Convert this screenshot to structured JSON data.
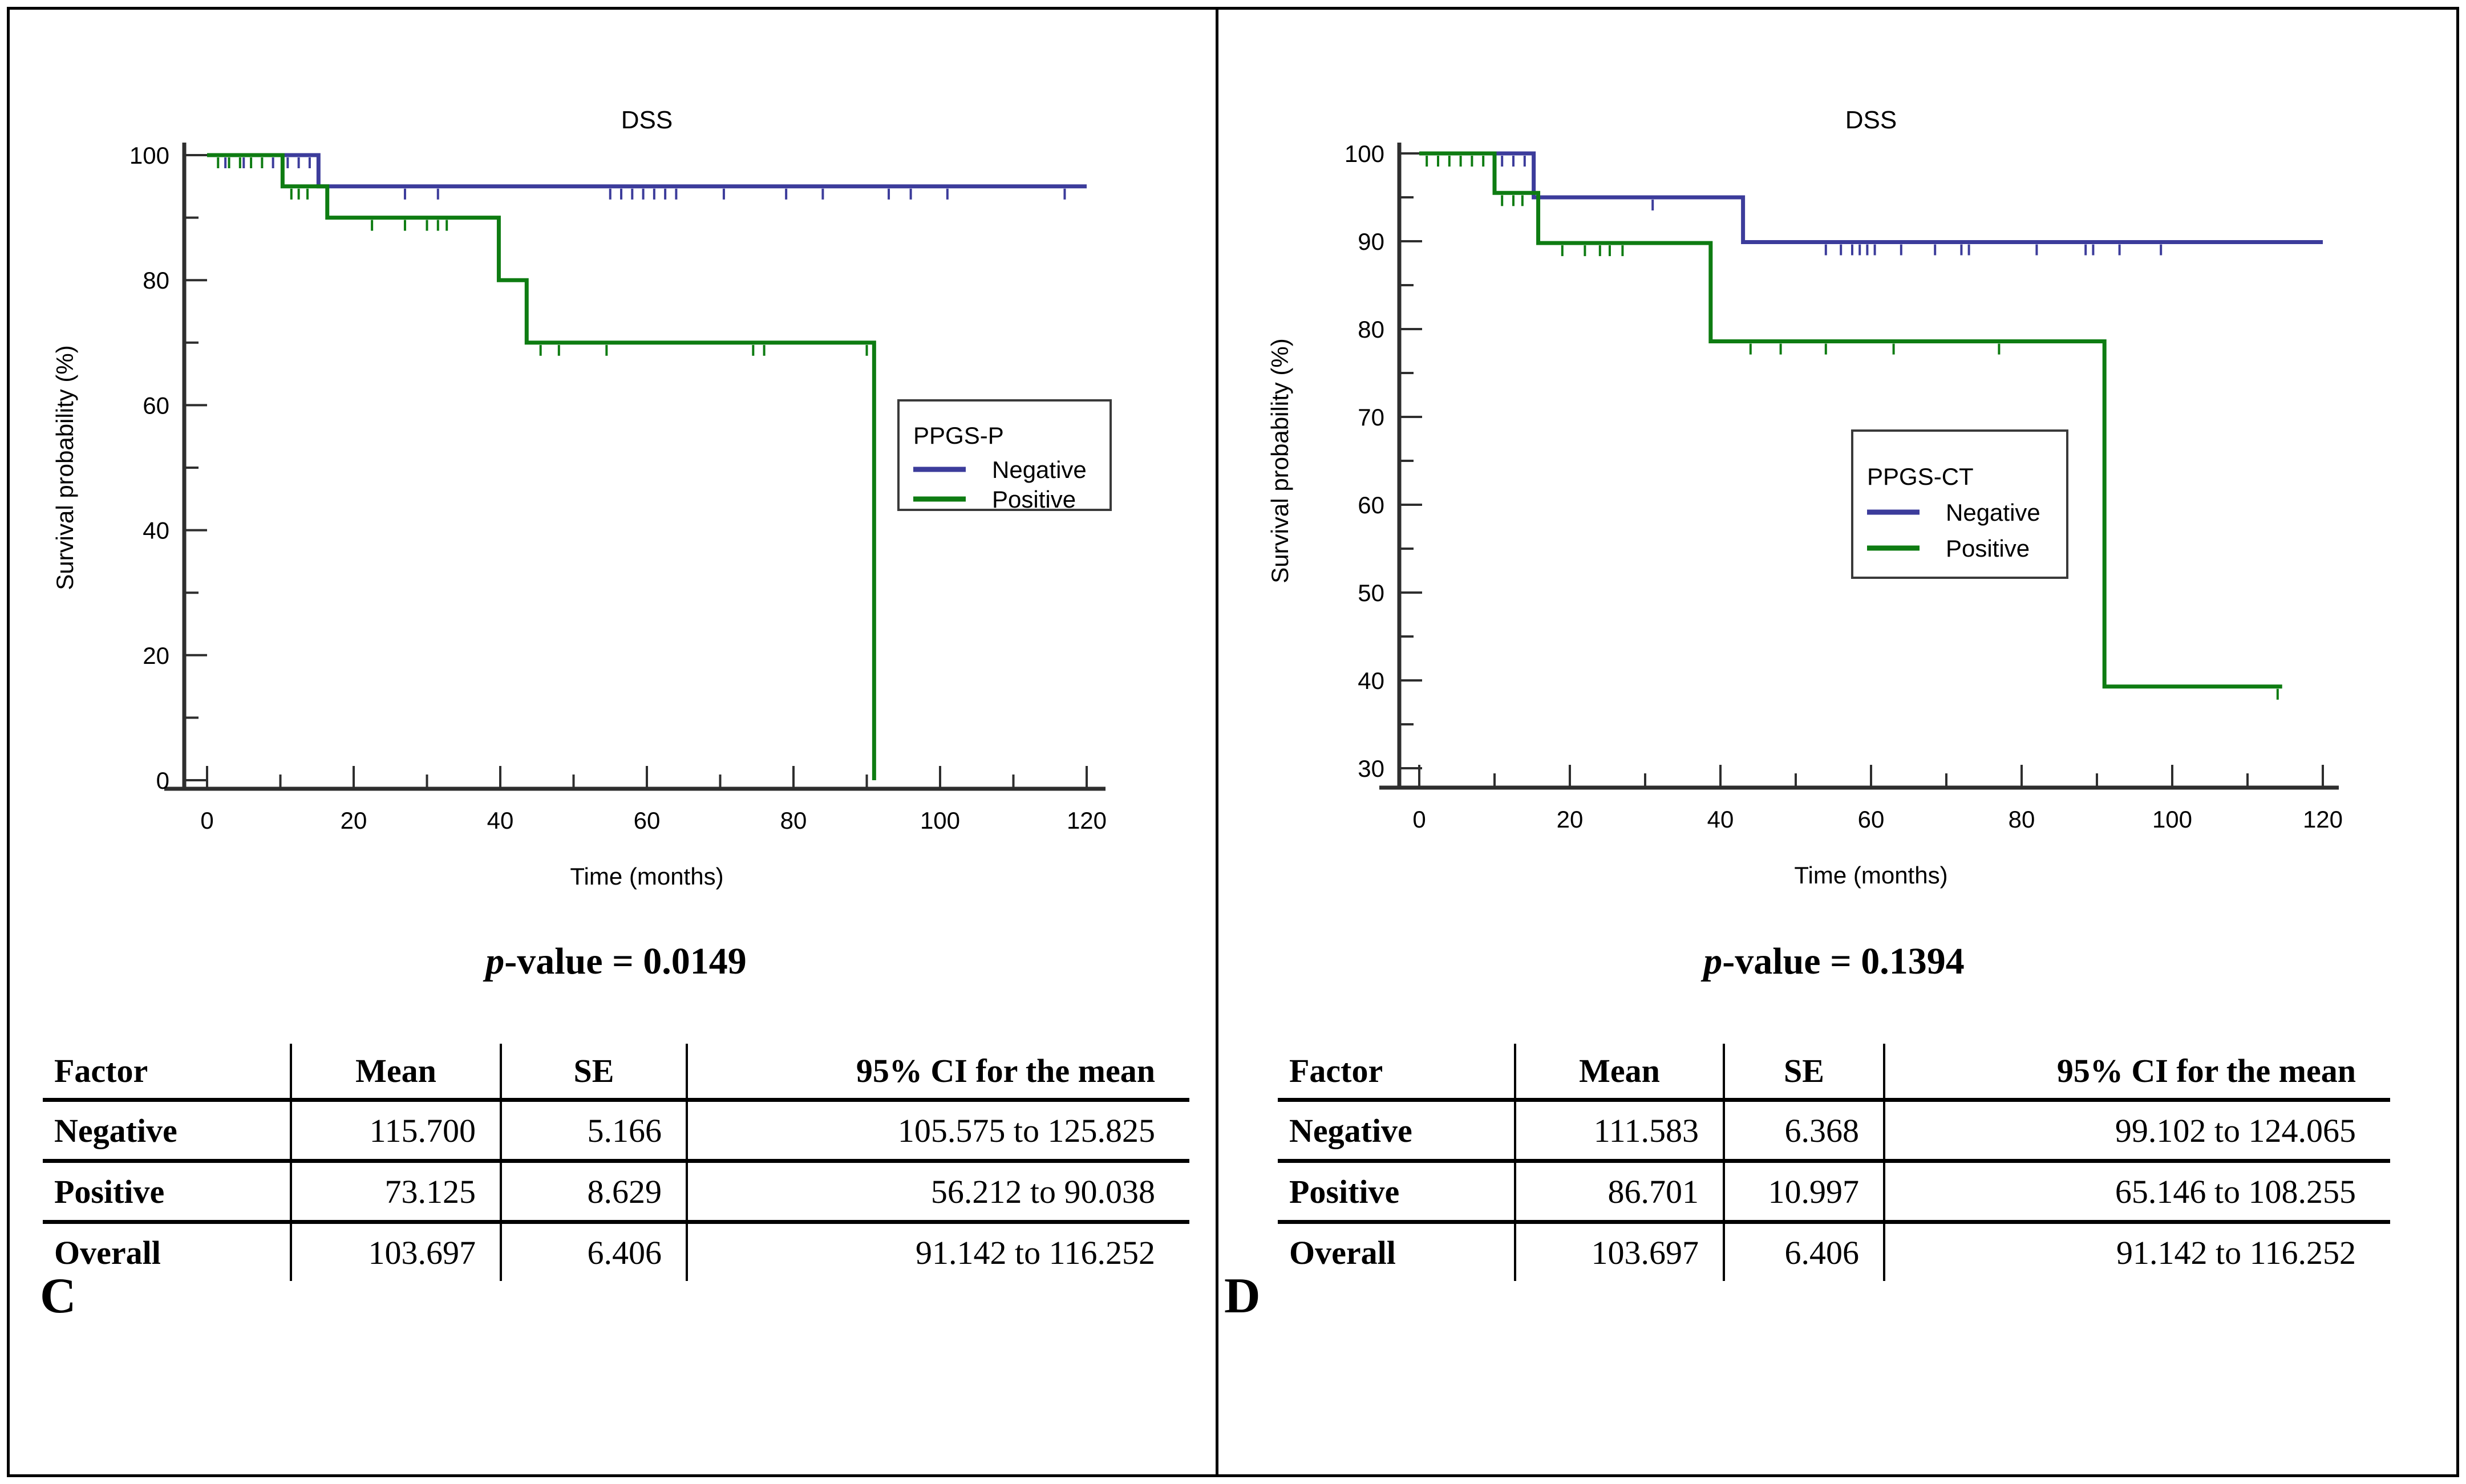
{
  "figure": {
    "background": "#ffffff",
    "border_color": "#000000",
    "axis_color": "#2e2e2e",
    "legend_border_color": "#3a3a3a"
  },
  "chart_data": [
    {
      "panel_label": "C",
      "type": "line",
      "subtype": "kaplan-meier-step",
      "title": "DSS",
      "xlabel": "Time (months)",
      "ylabel": "Survival probability (%)",
      "xlim": [
        0,
        120
      ],
      "ylim": [
        0,
        100
      ],
      "x_major_ticks": [
        0,
        20,
        40,
        60,
        80,
        100,
        120
      ],
      "x_minor_ticks": [
        10,
        30,
        50,
        70,
        90,
        110
      ],
      "y_major_ticks": [
        0,
        20,
        40,
        60,
        80,
        100
      ],
      "y_minor_ticks": [
        10,
        30,
        50,
        70,
        90
      ],
      "grid": false,
      "legend": {
        "title": "PPGS-P",
        "position": "right-middle"
      },
      "series": [
        {
          "name": "Negative",
          "color": "#3c3c9b",
          "steps": [
            [
              0,
              100
            ],
            [
              15.2,
              95
            ]
          ],
          "end": 120,
          "censors": [
            [
              2.5,
              100
            ],
            [
              5,
              100
            ],
            [
              9,
              100
            ],
            [
              11,
              100
            ],
            [
              12.5,
              100
            ],
            [
              14,
              100
            ],
            [
              27,
              95
            ],
            [
              31.5,
              95
            ],
            [
              55,
              95
            ],
            [
              56.5,
              95
            ],
            [
              58,
              95
            ],
            [
              59.5,
              95
            ],
            [
              61,
              95
            ],
            [
              62.5,
              95
            ],
            [
              64,
              95
            ],
            [
              70.5,
              95
            ],
            [
              79,
              95
            ],
            [
              84,
              95
            ],
            [
              93,
              95
            ],
            [
              96,
              95
            ],
            [
              101,
              95
            ],
            [
              117,
              95
            ]
          ]
        },
        {
          "name": "Positive",
          "color": "#0e7c12",
          "steps": [
            [
              0,
              100
            ],
            [
              10.3,
              95
            ],
            [
              16.4,
              90
            ],
            [
              39.8,
              80
            ],
            [
              43.6,
              70
            ],
            [
              91,
              0
            ]
          ],
          "end": 91,
          "censors": [
            [
              1.5,
              100
            ],
            [
              3,
              100
            ],
            [
              4.5,
              100
            ],
            [
              6,
              100
            ],
            [
              7.5,
              100
            ],
            [
              11.5,
              95
            ],
            [
              12.5,
              95
            ],
            [
              13.7,
              95
            ],
            [
              22.5,
              90
            ],
            [
              27,
              90
            ],
            [
              30,
              90
            ],
            [
              31.5,
              90
            ],
            [
              32.7,
              90
            ],
            [
              45.5,
              70
            ],
            [
              48,
              70
            ],
            [
              54.5,
              70
            ],
            [
              74.5,
              70
            ],
            [
              76,
              70
            ],
            [
              90,
              70
            ]
          ]
        }
      ],
      "p_value": {
        "prefix": "p",
        "rest": "-value = 0.0149"
      },
      "table": {
        "headers": [
          "Factor",
          "Mean",
          "SE",
          "95% CI for the mean"
        ],
        "rows": [
          [
            "Negative",
            "115.700",
            "5.166",
            "105.575 to 125.825"
          ],
          [
            "Positive",
            "73.125",
            "8.629",
            "56.212 to 90.038"
          ],
          [
            "Overall",
            "103.697",
            "6.406",
            "91.142 to 116.252"
          ]
        ]
      }
    },
    {
      "panel_label": "D",
      "type": "line",
      "subtype": "kaplan-meier-step",
      "title": "DSS",
      "xlabel": "Time (months)",
      "ylabel": "Survival probability (%)",
      "xlim": [
        0,
        120
      ],
      "ylim": [
        30,
        100
      ],
      "x_major_ticks": [
        0,
        20,
        40,
        60,
        80,
        100,
        120
      ],
      "x_minor_ticks": [
        10,
        30,
        50,
        70,
        90,
        110
      ],
      "y_major_ticks": [
        30,
        40,
        50,
        60,
        70,
        80,
        90,
        100
      ],
      "y_minor_ticks": [
        35,
        45,
        55,
        65,
        75,
        85,
        95
      ],
      "grid": false,
      "legend": {
        "title": "PPGS-CT",
        "position": "center-right"
      },
      "series": [
        {
          "name": "Negative",
          "color": "#3c3c9b",
          "steps": [
            [
              0,
              100
            ],
            [
              15.2,
              95
            ],
            [
              43,
              89.9
            ]
          ],
          "end": 120,
          "censors": [
            [
              11,
              100
            ],
            [
              12.5,
              100
            ],
            [
              14,
              100
            ],
            [
              31,
              95
            ],
            [
              54,
              89.9
            ],
            [
              56,
              89.9
            ],
            [
              57.5,
              89.9
            ],
            [
              58.5,
              89.9
            ],
            [
              59.5,
              89.9
            ],
            [
              60.5,
              89.9
            ],
            [
              64,
              89.9
            ],
            [
              68.5,
              89.9
            ],
            [
              72,
              89.9
            ],
            [
              73,
              89.9
            ],
            [
              82,
              89.9
            ],
            [
              88.5,
              89.9
            ],
            [
              89.5,
              89.9
            ],
            [
              93,
              89.9
            ],
            [
              98.5,
              89.9
            ]
          ]
        },
        {
          "name": "Positive",
          "color": "#0e7c12",
          "steps": [
            [
              0,
              100
            ],
            [
              10,
              95.5
            ],
            [
              15.8,
              89.8
            ],
            [
              38.7,
              78.6
            ],
            [
              91,
              39.3
            ]
          ],
          "end": 114.6,
          "censors": [
            [
              1,
              100
            ],
            [
              2.5,
              100
            ],
            [
              4,
              100
            ],
            [
              5.5,
              100
            ],
            [
              7,
              100
            ],
            [
              8.5,
              100
            ],
            [
              11,
              95.5
            ],
            [
              12.5,
              95.5
            ],
            [
              13.7,
              95.5
            ],
            [
              19,
              89.8
            ],
            [
              22,
              89.8
            ],
            [
              24,
              89.8
            ],
            [
              25.3,
              89.8
            ],
            [
              27,
              89.8
            ],
            [
              44,
              78.6
            ],
            [
              48,
              78.6
            ],
            [
              54,
              78.6
            ],
            [
              63,
              78.6
            ],
            [
              77,
              78.6
            ],
            [
              114,
              39.3
            ]
          ]
        }
      ],
      "p_value": {
        "prefix": "p",
        "rest": "-value = 0.1394"
      },
      "table": {
        "headers": [
          "Factor",
          "Mean",
          "SE",
          "95% CI for the mean"
        ],
        "rows": [
          [
            "Negative",
            "111.583",
            "6.368",
            "99.102 to 124.065"
          ],
          [
            "Positive",
            "86.701",
            "10.997",
            "65.146 to 108.255"
          ],
          [
            "Overall",
            "103.697",
            "6.406",
            "91.142 to 116.252"
          ]
        ]
      }
    }
  ]
}
